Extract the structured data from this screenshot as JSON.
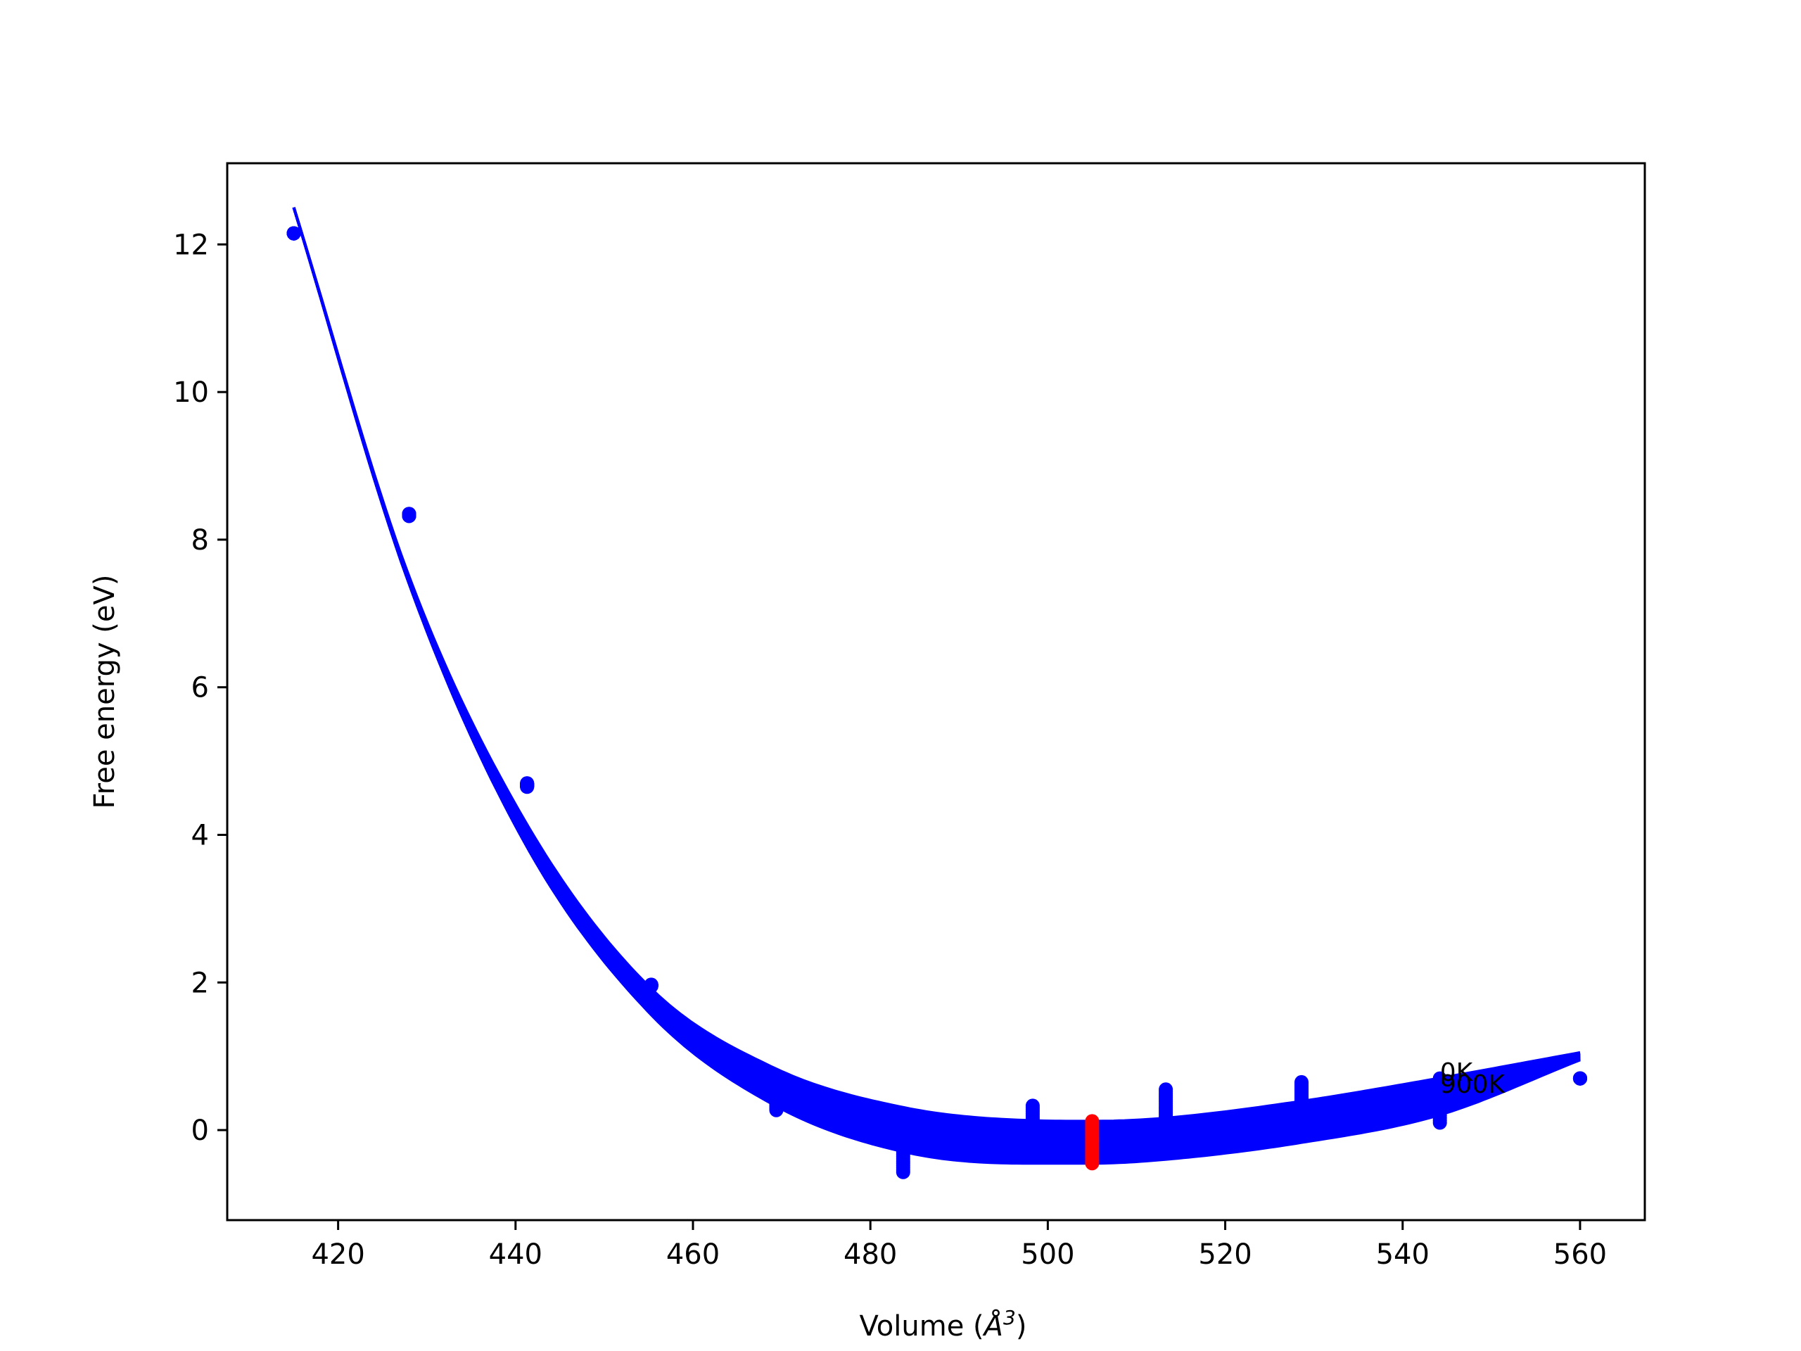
{
  "chart_data": {
    "type": "line",
    "xlabel_prefix": "Volume (",
    "xlabel_unit": "Å",
    "xlabel_power": "3",
    "xlabel_suffix": ")",
    "ylabel": "Free energy (eV)",
    "xlim": [
      407.5,
      567.3
    ],
    "ylim": [
      -1.22,
      13.1
    ],
    "xticks": [
      420,
      440,
      460,
      480,
      500,
      520,
      540,
      560
    ],
    "yticks": [
      0,
      2,
      4,
      6,
      8,
      10,
      12
    ],
    "grid": false,
    "colors": {
      "curves": "#0000ff",
      "points": "#0000ff",
      "minima": "#ff0000",
      "axes": "#000000"
    },
    "temperature_range_K": [
      0,
      900
    ],
    "n_curves": 19,
    "curve_x_range": [
      415,
      560
    ],
    "fit_curves": {
      "T0": {
        "label": "0K",
        "x": [
          415,
          428,
          441,
          455,
          469,
          484,
          498,
          505,
          513,
          528,
          544,
          560
        ],
        "y": [
          12.5,
          7.5,
          4.2,
          1.95,
          0.85,
          0.3,
          0.13,
          0.12,
          0.16,
          0.38,
          0.7,
          1.05
        ]
      },
      "T900": {
        "label": "900K",
        "x": [
          415,
          428,
          441,
          455,
          469,
          484,
          498,
          505,
          513,
          528,
          544,
          560
        ],
        "y": [
          12.5,
          7.4,
          3.9,
          1.6,
          0.35,
          -0.3,
          -0.45,
          -0.45,
          -0.4,
          -0.18,
          0.2,
          0.95
        ]
      }
    },
    "data_points": {
      "x": [
        415,
        428,
        441.3,
        455.3,
        469.4,
        483.7,
        498.3,
        513.3,
        528.6,
        544.2,
        560
      ],
      "y_0K": [
        12.15,
        8.35,
        4.7,
        1.97,
        0.6,
        -0.03,
        0.33,
        0.55,
        0.65,
        0.7,
        0.7
      ],
      "y_900K": [
        12.15,
        8.32,
        4.65,
        1.95,
        0.27,
        -0.57,
        -0.15,
        0.05,
        0.3,
        0.1,
        0.7
      ]
    },
    "minima": {
      "x": 505,
      "y_range": [
        -0.45,
        0.12
      ]
    },
    "annotations": [
      {
        "text": "0K",
        "x": 544.2,
        "y": 0.78
      },
      {
        "text": "900K",
        "x": 544.2,
        "y": 0.62
      }
    ]
  }
}
